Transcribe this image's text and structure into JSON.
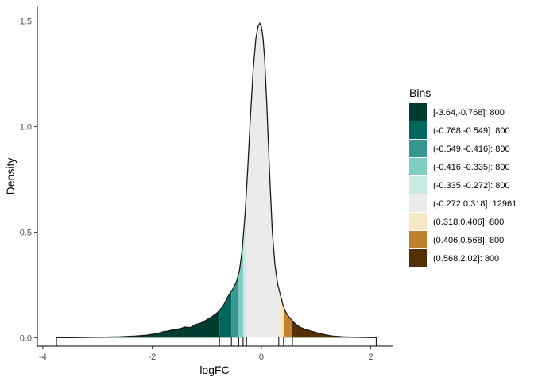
{
  "chart_data": {
    "type": "area",
    "title": "",
    "xlabel": "logFC",
    "ylabel": "Density",
    "xlim": [
      -4.1,
      2.4
    ],
    "ylim": [
      -0.04,
      1.57
    ],
    "xticks": [
      -4,
      -2,
      0,
      2
    ],
    "xtick_labels": [
      "-4",
      "-2",
      "0",
      "2"
    ],
    "yticks": [
      0.0,
      0.5,
      1.0,
      1.5
    ],
    "ytick_labels": [
      "0.0",
      "0.5",
      "1.0",
      "1.5"
    ],
    "grid": false,
    "legend_position": "right",
    "legend": {
      "title": "Bins",
      "entries": [
        {
          "label": "[-3.64,-0.768]: 800",
          "color": "#003c30"
        },
        {
          "label": "(-0.768,-0.549]: 800",
          "color": "#01665e"
        },
        {
          "label": "(-0.549,-0.416]: 800",
          "color": "#35978f"
        },
        {
          "label": "(-0.416,-0.335]: 800",
          "color": "#80cdc1"
        },
        {
          "label": "(-0.335,-0.272]: 800",
          "color": "#c7eae5"
        },
        {
          "label": "(-0.272,0.318]: 12961",
          "color": "#ebebeb"
        },
        {
          "label": "(0.318,0.406]: 800",
          "color": "#f6e8c3"
        },
        {
          "label": "(0.406,0.568]: 800",
          "color": "#bf812d"
        },
        {
          "label": "(0.568,2.02]: 800",
          "color": "#543005"
        }
      ]
    },
    "bins": [
      {
        "from": -3.75,
        "to": -0.768,
        "color": "#003c30"
      },
      {
        "from": -0.768,
        "to": -0.549,
        "color": "#01665e"
      },
      {
        "from": -0.549,
        "to": -0.416,
        "color": "#35978f"
      },
      {
        "from": -0.416,
        "to": -0.335,
        "color": "#80cdc1"
      },
      {
        "from": -0.335,
        "to": -0.272,
        "color": "#c7eae5"
      },
      {
        "from": -0.272,
        "to": 0.318,
        "color": "#ebebeb"
      },
      {
        "from": 0.318,
        "to": 0.406,
        "color": "#f6e8c3"
      },
      {
        "from": 0.406,
        "to": 0.568,
        "color": "#bf812d"
      },
      {
        "from": 0.568,
        "to": 2.1,
        "color": "#543005"
      }
    ],
    "rug_ticks": [
      -3.75,
      -0.768,
      -0.549,
      -0.416,
      -0.335,
      -0.272,
      0.318,
      0.406,
      0.568,
      2.1
    ],
    "density": {
      "x": [
        -3.75,
        -3.5,
        -3.0,
        -2.6,
        -2.3,
        -2.1,
        -1.9,
        -1.8,
        -1.7,
        -1.6,
        -1.5,
        -1.4,
        -1.3,
        -1.2,
        -1.1,
        -1.0,
        -0.9,
        -0.8,
        -0.7,
        -0.6,
        -0.5,
        -0.45,
        -0.4,
        -0.35,
        -0.3,
        -0.25,
        -0.2,
        -0.15,
        -0.1,
        -0.06,
        -0.03,
        0.0,
        0.03,
        0.06,
        0.1,
        0.15,
        0.2,
        0.25,
        0.3,
        0.35,
        0.4,
        0.45,
        0.5,
        0.55,
        0.6,
        0.7,
        0.8,
        0.9,
        1.0,
        1.1,
        1.2,
        1.3,
        1.4,
        1.5,
        1.7,
        1.9,
        2.1
      ],
      "y": [
        0.0,
        0.0,
        0.002,
        0.004,
        0.008,
        0.012,
        0.02,
        0.028,
        0.032,
        0.038,
        0.042,
        0.05,
        0.048,
        0.062,
        0.07,
        0.085,
        0.1,
        0.12,
        0.15,
        0.2,
        0.24,
        0.27,
        0.32,
        0.42,
        0.58,
        0.8,
        1.05,
        1.27,
        1.42,
        1.475,
        1.49,
        1.475,
        1.42,
        1.32,
        1.1,
        0.78,
        0.5,
        0.34,
        0.25,
        0.2,
        0.15,
        0.12,
        0.1,
        0.085,
        0.07,
        0.05,
        0.04,
        0.032,
        0.025,
        0.018,
        0.012,
        0.008,
        0.006,
        0.004,
        0.002,
        0.001,
        0.0
      ]
    }
  }
}
